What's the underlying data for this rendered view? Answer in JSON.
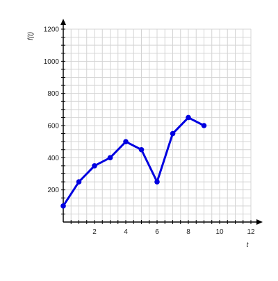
{
  "chart_data": {
    "type": "line",
    "title": "",
    "xlabel": "t",
    "ylabel": "f(t)",
    "xlim": [
      0,
      12
    ],
    "ylim": [
      0,
      1200
    ],
    "x_ticks": [
      2,
      4,
      6,
      8,
      10,
      12
    ],
    "y_ticks": [
      200,
      400,
      600,
      800,
      1000,
      1200
    ],
    "x_tick_labels": [
      "2",
      "4",
      "6",
      "8",
      "10",
      "12"
    ],
    "y_tick_labels": [
      "200",
      "400",
      "600",
      "800",
      "1000",
      "1200"
    ],
    "x_minor_step": 0.5,
    "y_minor_step": 50,
    "grid": true,
    "series": [
      {
        "x": [
          0,
          1,
          2,
          3,
          4,
          5,
          6,
          7,
          8,
          9
        ],
        "values": [
          100,
          250,
          350,
          400,
          500,
          450,
          250,
          550,
          650,
          600
        ],
        "color": "#0000e0"
      }
    ]
  }
}
